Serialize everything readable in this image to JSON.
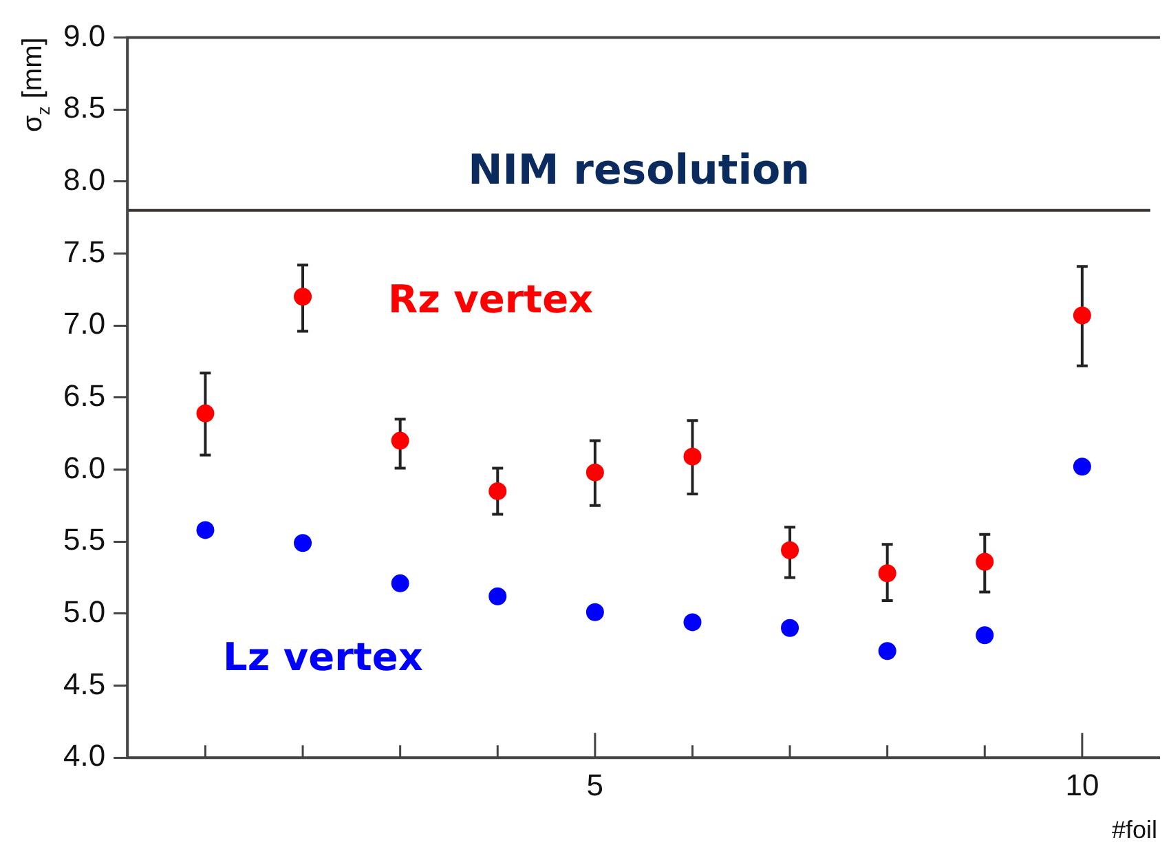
{
  "chart_data": {
    "type": "scatter",
    "xlabel": "#foil",
    "ylabel": "σ$_{z}$ [mm]",
    "x": [
      1,
      2,
      3,
      4,
      5,
      6,
      7,
      8,
      9,
      10
    ],
    "series": [
      {
        "name": "Rz vertex",
        "color": "#ff0000",
        "values": [
          6.39,
          7.2,
          6.2,
          5.85,
          5.98,
          6.09,
          5.44,
          5.28,
          5.36,
          7.07
        ],
        "errors": [
          [
            6.1,
            6.67
          ],
          [
            6.96,
            7.42
          ],
          [
            6.01,
            6.35
          ],
          [
            5.69,
            6.01
          ],
          [
            5.75,
            6.2
          ],
          [
            5.83,
            6.34
          ],
          [
            5.25,
            5.6
          ],
          [
            5.09,
            5.48
          ],
          [
            5.15,
            5.55
          ],
          [
            6.72,
            7.41
          ]
        ]
      },
      {
        "name": "Lz vertex",
        "color": "#0000ff",
        "values": [
          5.58,
          5.49,
          5.21,
          5.12,
          5.01,
          4.94,
          4.9,
          4.74,
          4.85,
          6.02
        ]
      }
    ],
    "ref_lines": [
      {
        "axis": "y",
        "value": 7.8,
        "label": "NIM resolution",
        "color": "#3a3530"
      }
    ],
    "xlim": [
      0.2,
      10.7
    ],
    "xticks": [
      {
        "value": 1,
        "label": null
      },
      {
        "value": 2,
        "label": null
      },
      {
        "value": 3,
        "label": null
      },
      {
        "value": 4,
        "label": null
      },
      5,
      {
        "value": 6,
        "label": null
      },
      {
        "value": 7,
        "label": null
      },
      {
        "value": 8,
        "label": null
      },
      {
        "value": 9,
        "label": null
      },
      10
    ],
    "ylim": [
      4,
      9
    ],
    "yticks": [
      {
        "value": 4,
        "label": "4.0"
      },
      {
        "value": 4.5,
        "label": "4.5"
      },
      {
        "value": 5,
        "label": "5.0"
      },
      {
        "value": 5.5,
        "label": "5.5"
      },
      {
        "value": 6,
        "label": "6.0"
      },
      {
        "value": 6.5,
        "label": "6.5"
      },
      {
        "value": 7,
        "label": "7.0"
      },
      {
        "value": 7.5,
        "label": "7.5"
      },
      {
        "value": 8,
        "label": "8.0"
      },
      {
        "value": 8.5,
        "label": "8.5"
      },
      {
        "value": 9,
        "label": "9.0"
      }
    ],
    "grid": false,
    "marker": "circle"
  }
}
